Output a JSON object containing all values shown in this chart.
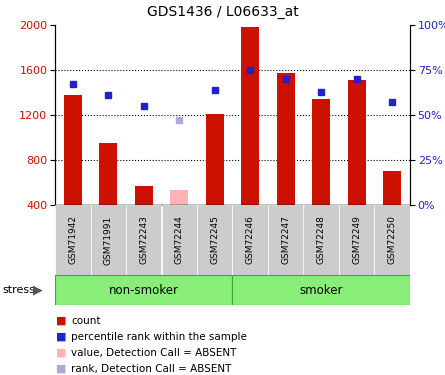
{
  "title": "GDS1436 / L06633_at",
  "samples": [
    "GSM71942",
    "GSM71991",
    "GSM72243",
    "GSM72244",
    "GSM72245",
    "GSM72246",
    "GSM72247",
    "GSM72248",
    "GSM72249",
    "GSM72250"
  ],
  "counts": [
    1380,
    950,
    570,
    null,
    1210,
    1980,
    1570,
    1340,
    1510,
    700
  ],
  "counts_absent": [
    null,
    null,
    null,
    530,
    null,
    null,
    null,
    null,
    null,
    null
  ],
  "ranks": [
    67,
    61,
    55,
    null,
    64,
    75,
    70,
    63,
    70,
    57
  ],
  "ranks_absent": [
    null,
    null,
    null,
    47,
    null,
    null,
    null,
    null,
    null,
    null
  ],
  "ylim_left": [
    400,
    2000
  ],
  "ylim_right": [
    0,
    100
  ],
  "yticks_left": [
    400,
    800,
    1200,
    1600,
    2000
  ],
  "yticks_right": [
    0,
    25,
    50,
    75,
    100
  ],
  "ytick_labels_right": [
    "0%",
    "25%",
    "50%",
    "75%",
    "100%"
  ],
  "bar_color": "#cc1100",
  "bar_color_absent": "#ffb3b3",
  "rank_color": "#2222cc",
  "rank_color_absent": "#aaaadd",
  "group_bg_color": "#88ee77",
  "label_bg_color": "#cccccc",
  "plot_bg_color": "#ffffff",
  "legend_items": [
    {
      "label": "count",
      "color": "#cc1100"
    },
    {
      "label": "percentile rank within the sample",
      "color": "#2222cc"
    },
    {
      "label": "value, Detection Call = ABSENT",
      "color": "#ffb3b3"
    },
    {
      "label": "rank, Detection Call = ABSENT",
      "color": "#aaaadd"
    }
  ],
  "stress_label": "stress",
  "non_smoker_label": "non-smoker",
  "smoker_label": "smoker",
  "baseline": 400,
  "bar_width": 0.5,
  "grid_values": [
    800,
    1200,
    1600
  ]
}
